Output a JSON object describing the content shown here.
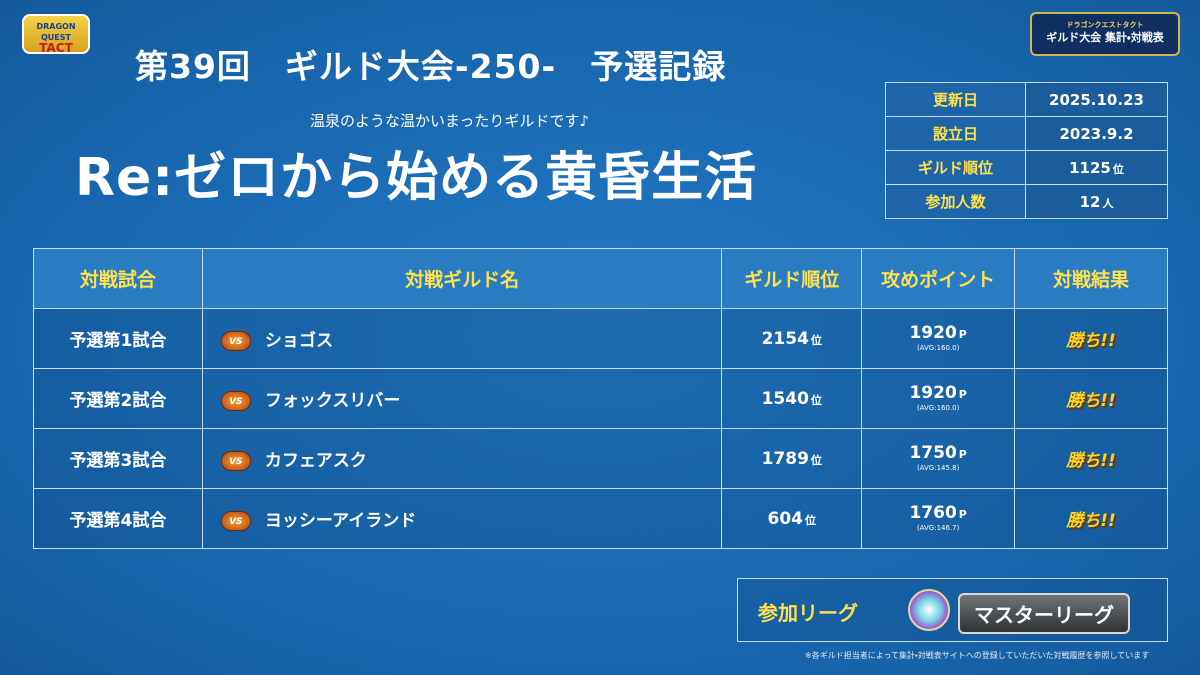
{
  "logo": {
    "left": "DRAGON QUEST",
    "left_sub": "TACT",
    "right_top": "ドラゴンクエストタクト",
    "right_main": "ギルド大会 集計・対戦表"
  },
  "header": {
    "title": "第39回　ギルド大会-250-　予選記録",
    "tagline": "温泉のような温かいまったりギルドです♪",
    "guild_name": "Re:ゼロから始める黄昏生活"
  },
  "info": {
    "rows": [
      {
        "label": "更新日",
        "value": "2025.10.23"
      },
      {
        "label": "設立日",
        "value": "2023.9.2"
      },
      {
        "label": "ギルド順位",
        "value": "1125",
        "unit": "位"
      },
      {
        "label": "参加人数",
        "value": "12",
        "unit": "人"
      }
    ]
  },
  "table": {
    "headers": [
      "対戦試合",
      "対戦ギルド名",
      "ギルド順位",
      "攻めポイント",
      "対戦結果"
    ],
    "rows": [
      {
        "match": "予選第1試合",
        "opponent": "ショゴス",
        "rank": "2154",
        "rank_unit": "位",
        "points": "1920",
        "points_unit": "P",
        "avg": "(AVG:160.0)",
        "result": "勝ち!!"
      },
      {
        "match": "予選第2試合",
        "opponent": "フォックスリバー",
        "rank": "1540",
        "rank_unit": "位",
        "points": "1920",
        "points_unit": "P",
        "avg": "(AVG:160.0)",
        "result": "勝ち!!"
      },
      {
        "match": "予選第3試合",
        "opponent": "カフェアスク",
        "rank": "1789",
        "rank_unit": "位",
        "points": "1750",
        "points_unit": "P",
        "avg": "(AVG:145.8)",
        "result": "勝ち!!"
      },
      {
        "match": "予選第4試合",
        "opponent": "ヨッシーアイランド",
        "rank": "604",
        "rank_unit": "位",
        "points": "1760",
        "points_unit": "P",
        "avg": "(AVG:146.7)",
        "result": "勝ち!!"
      }
    ]
  },
  "league": {
    "label": "参加リーグ",
    "name": "マスターリーグ"
  },
  "footer": {
    "note": "※各ギルド担当者によって集計・対戦表サイトへの登録していただいた対戦履歴を参照しています"
  }
}
